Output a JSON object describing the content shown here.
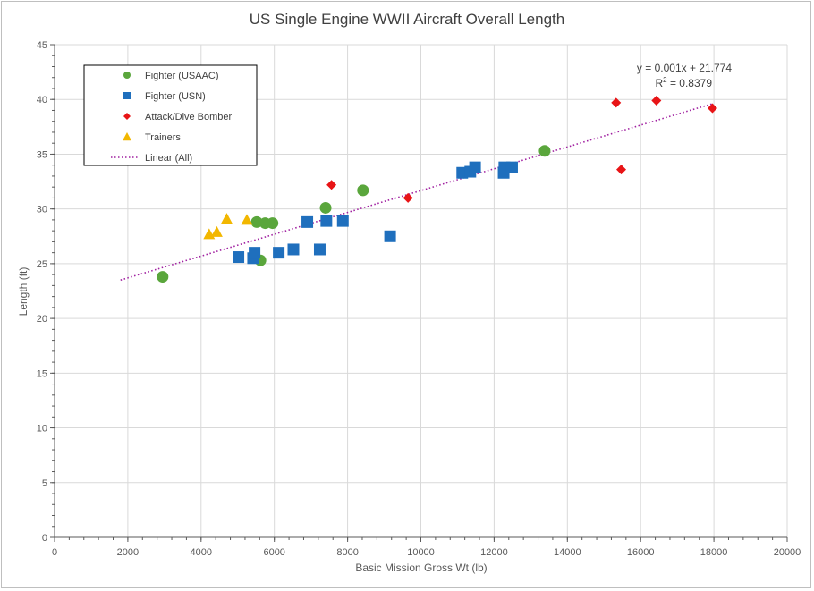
{
  "chart_data": {
    "type": "scatter",
    "title": "US Single Engine WWII Aircraft Overall Length",
    "xlabel": "Basic Mission Gross Wt (lb)",
    "ylabel": "Length (ft)",
    "xlim": [
      0,
      20000
    ],
    "ylim": [
      0,
      45
    ],
    "xticks": [
      "0",
      "2000",
      "4000",
      "6000",
      "8000",
      "10000",
      "12000",
      "14000",
      "16000",
      "18000",
      "20000"
    ],
    "yticks": [
      "0",
      "5",
      "10",
      "15",
      "20",
      "25",
      "30",
      "35",
      "40",
      "45"
    ],
    "grid": "major-both",
    "legend_position": "top-left",
    "colors": {
      "usaac": "#5aa63c",
      "usn": "#1f6fbd",
      "attack": "#e81416",
      "trainer": "#f2b700",
      "trend": "#a020a0",
      "grid": "#d9d9d9",
      "axis": "#595959"
    },
    "series": [
      {
        "name": "Fighter (USAAC)",
        "marker": "circle",
        "points": [
          {
            "x": 2950,
            "y": 23.8
          },
          {
            "x": 5520,
            "y": 28.8
          },
          {
            "x": 5620,
            "y": 25.3
          },
          {
            "x": 5750,
            "y": 28.7
          },
          {
            "x": 5950,
            "y": 28.7
          },
          {
            "x": 7400,
            "y": 30.1
          },
          {
            "x": 8420,
            "y": 31.7
          },
          {
            "x": 13380,
            "y": 35.3
          }
        ]
      },
      {
        "name": "Fighter (USN)",
        "marker": "square",
        "points": [
          {
            "x": 5020,
            "y": 25.6
          },
          {
            "x": 5420,
            "y": 25.5
          },
          {
            "x": 5460,
            "y": 26.0
          },
          {
            "x": 6120,
            "y": 26.0
          },
          {
            "x": 6520,
            "y": 26.3
          },
          {
            "x": 6900,
            "y": 28.8
          },
          {
            "x": 7240,
            "y": 26.3
          },
          {
            "x": 7420,
            "y": 28.9
          },
          {
            "x": 7870,
            "y": 28.9
          },
          {
            "x": 9160,
            "y": 27.5
          },
          {
            "x": 11130,
            "y": 33.3
          },
          {
            "x": 11350,
            "y": 33.4
          },
          {
            "x": 11480,
            "y": 33.8
          },
          {
            "x": 12260,
            "y": 33.3
          },
          {
            "x": 12280,
            "y": 33.8
          },
          {
            "x": 12490,
            "y": 33.8
          }
        ]
      },
      {
        "name": "Attack/Dive Bomber",
        "marker": "diamond",
        "points": [
          {
            "x": 7560,
            "y": 32.2
          },
          {
            "x": 9650,
            "y": 31.0
          },
          {
            "x": 15330,
            "y": 39.7
          },
          {
            "x": 15470,
            "y": 33.6
          },
          {
            "x": 16430,
            "y": 39.9
          },
          {
            "x": 17960,
            "y": 39.2
          }
        ]
      },
      {
        "name": "Trainers",
        "marker": "triangle",
        "points": [
          {
            "x": 4220,
            "y": 27.7
          },
          {
            "x": 4430,
            "y": 27.9
          },
          {
            "x": 4700,
            "y": 29.1
          },
          {
            "x": 5250,
            "y": 29.0
          }
        ]
      }
    ],
    "trendline": {
      "name": "Linear (All)",
      "style": "dotted",
      "x_range": [
        1800,
        17950
      ],
      "y_range": [
        23.5,
        39.6
      ],
      "equation": "y = 0.001x + 21.774",
      "r2_prefix": "R",
      "r2_sup": "2",
      "r2_value": " = 0.8379"
    }
  }
}
